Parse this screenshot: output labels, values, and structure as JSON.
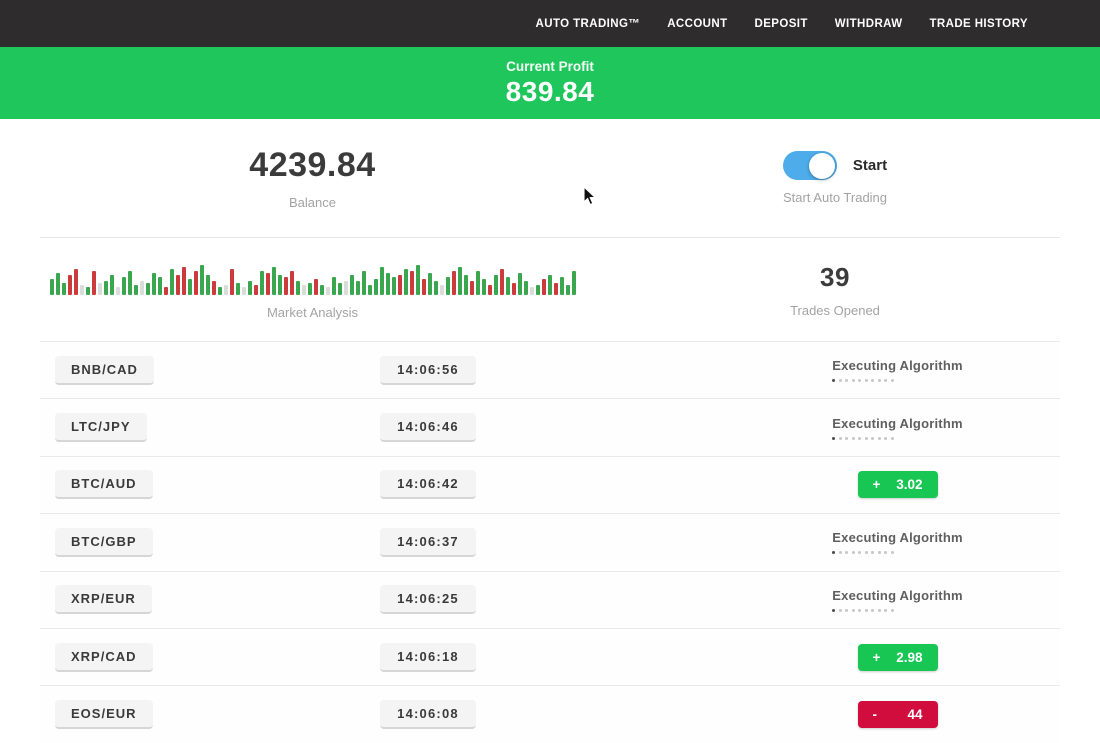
{
  "nav": {
    "items": [
      {
        "label": "AUTO TRADING™"
      },
      {
        "label": "ACCOUNT"
      },
      {
        "label": "DEPOSIT"
      },
      {
        "label": "WITHDRAW"
      },
      {
        "label": "TRADE HISTORY"
      }
    ]
  },
  "profit_banner": {
    "label": "Current Profit",
    "value": "839.84"
  },
  "stats": {
    "balance": {
      "value": "4239.84",
      "label": "Balance"
    },
    "auto_trading": {
      "toggle_label": "Start",
      "label": "Start Auto Trading",
      "toggle_state": "on"
    },
    "market_analysis": {
      "label": "Market Analysis"
    },
    "trades_opened": {
      "value": "39",
      "label": "Trades Opened"
    }
  },
  "chart_data": {
    "type": "bar",
    "title": "Market Analysis",
    "legend": "g=green up-bar, r=red down-bar, l=light neutral bar; number = bar height in px",
    "bars": [
      "g16",
      "g22",
      "g12",
      "r20",
      "r26",
      "l10",
      "g8",
      "r24",
      "l12",
      "g14",
      "g20",
      "l8",
      "g18",
      "g24",
      "g10",
      "l14",
      "g12",
      "g22",
      "g18",
      "r8",
      "g26",
      "r20",
      "r28",
      "g16",
      "r24",
      "g30",
      "g20",
      "r14",
      "g8",
      "l10",
      "r26",
      "g12",
      "l8",
      "g14",
      "r10",
      "g24",
      "r22",
      "g28",
      "g20",
      "r18",
      "r24",
      "g14",
      "l10",
      "g12",
      "r16",
      "g10",
      "l8",
      "g18",
      "g12",
      "l14",
      "g20",
      "g14",
      "g24",
      "g10",
      "g16",
      "g28",
      "g22",
      "g18",
      "r20",
      "g26",
      "r24",
      "g30",
      "r16",
      "g22",
      "g14",
      "l10",
      "g18",
      "r24",
      "g28",
      "g20",
      "r14",
      "g24",
      "g16",
      "r10",
      "g20",
      "r26",
      "g18",
      "r12",
      "g22",
      "g14",
      "l8",
      "g10",
      "r16",
      "g20",
      "r12",
      "g18",
      "g10",
      "g24"
    ]
  },
  "statuses": {
    "executing_label": "Executing Algorithm",
    "dots_total": 10,
    "dots_active": 1
  },
  "trades": [
    {
      "pair": "BNB/CAD",
      "time": "14:06:56",
      "status": "executing",
      "sign": "",
      "value": ""
    },
    {
      "pair": "LTC/JPY",
      "time": "14:06:46",
      "status": "executing",
      "sign": "",
      "value": ""
    },
    {
      "pair": "BTC/AUD",
      "time": "14:06:42",
      "status": "profit",
      "sign": "+",
      "value": "3.02"
    },
    {
      "pair": "BTC/GBP",
      "time": "14:06:37",
      "status": "executing",
      "sign": "",
      "value": ""
    },
    {
      "pair": "XRP/EUR",
      "time": "14:06:25",
      "status": "executing",
      "sign": "",
      "value": ""
    },
    {
      "pair": "XRP/CAD",
      "time": "14:06:18",
      "status": "profit",
      "sign": "+",
      "value": "2.98"
    },
    {
      "pair": "EOS/EUR",
      "time": "14:06:08",
      "status": "loss",
      "sign": "-",
      "value": "44"
    }
  ],
  "colors": {
    "nav_bg": "#2e2c2c",
    "banner_green": "#1fc65c",
    "badge_green": "#17c653",
    "badge_red": "#d00d3d",
    "toggle_blue": "#4dace9",
    "bar_green": "#3aa74e",
    "bar_red": "#cc3b3b",
    "bar_light": "#d9ddd9"
  }
}
